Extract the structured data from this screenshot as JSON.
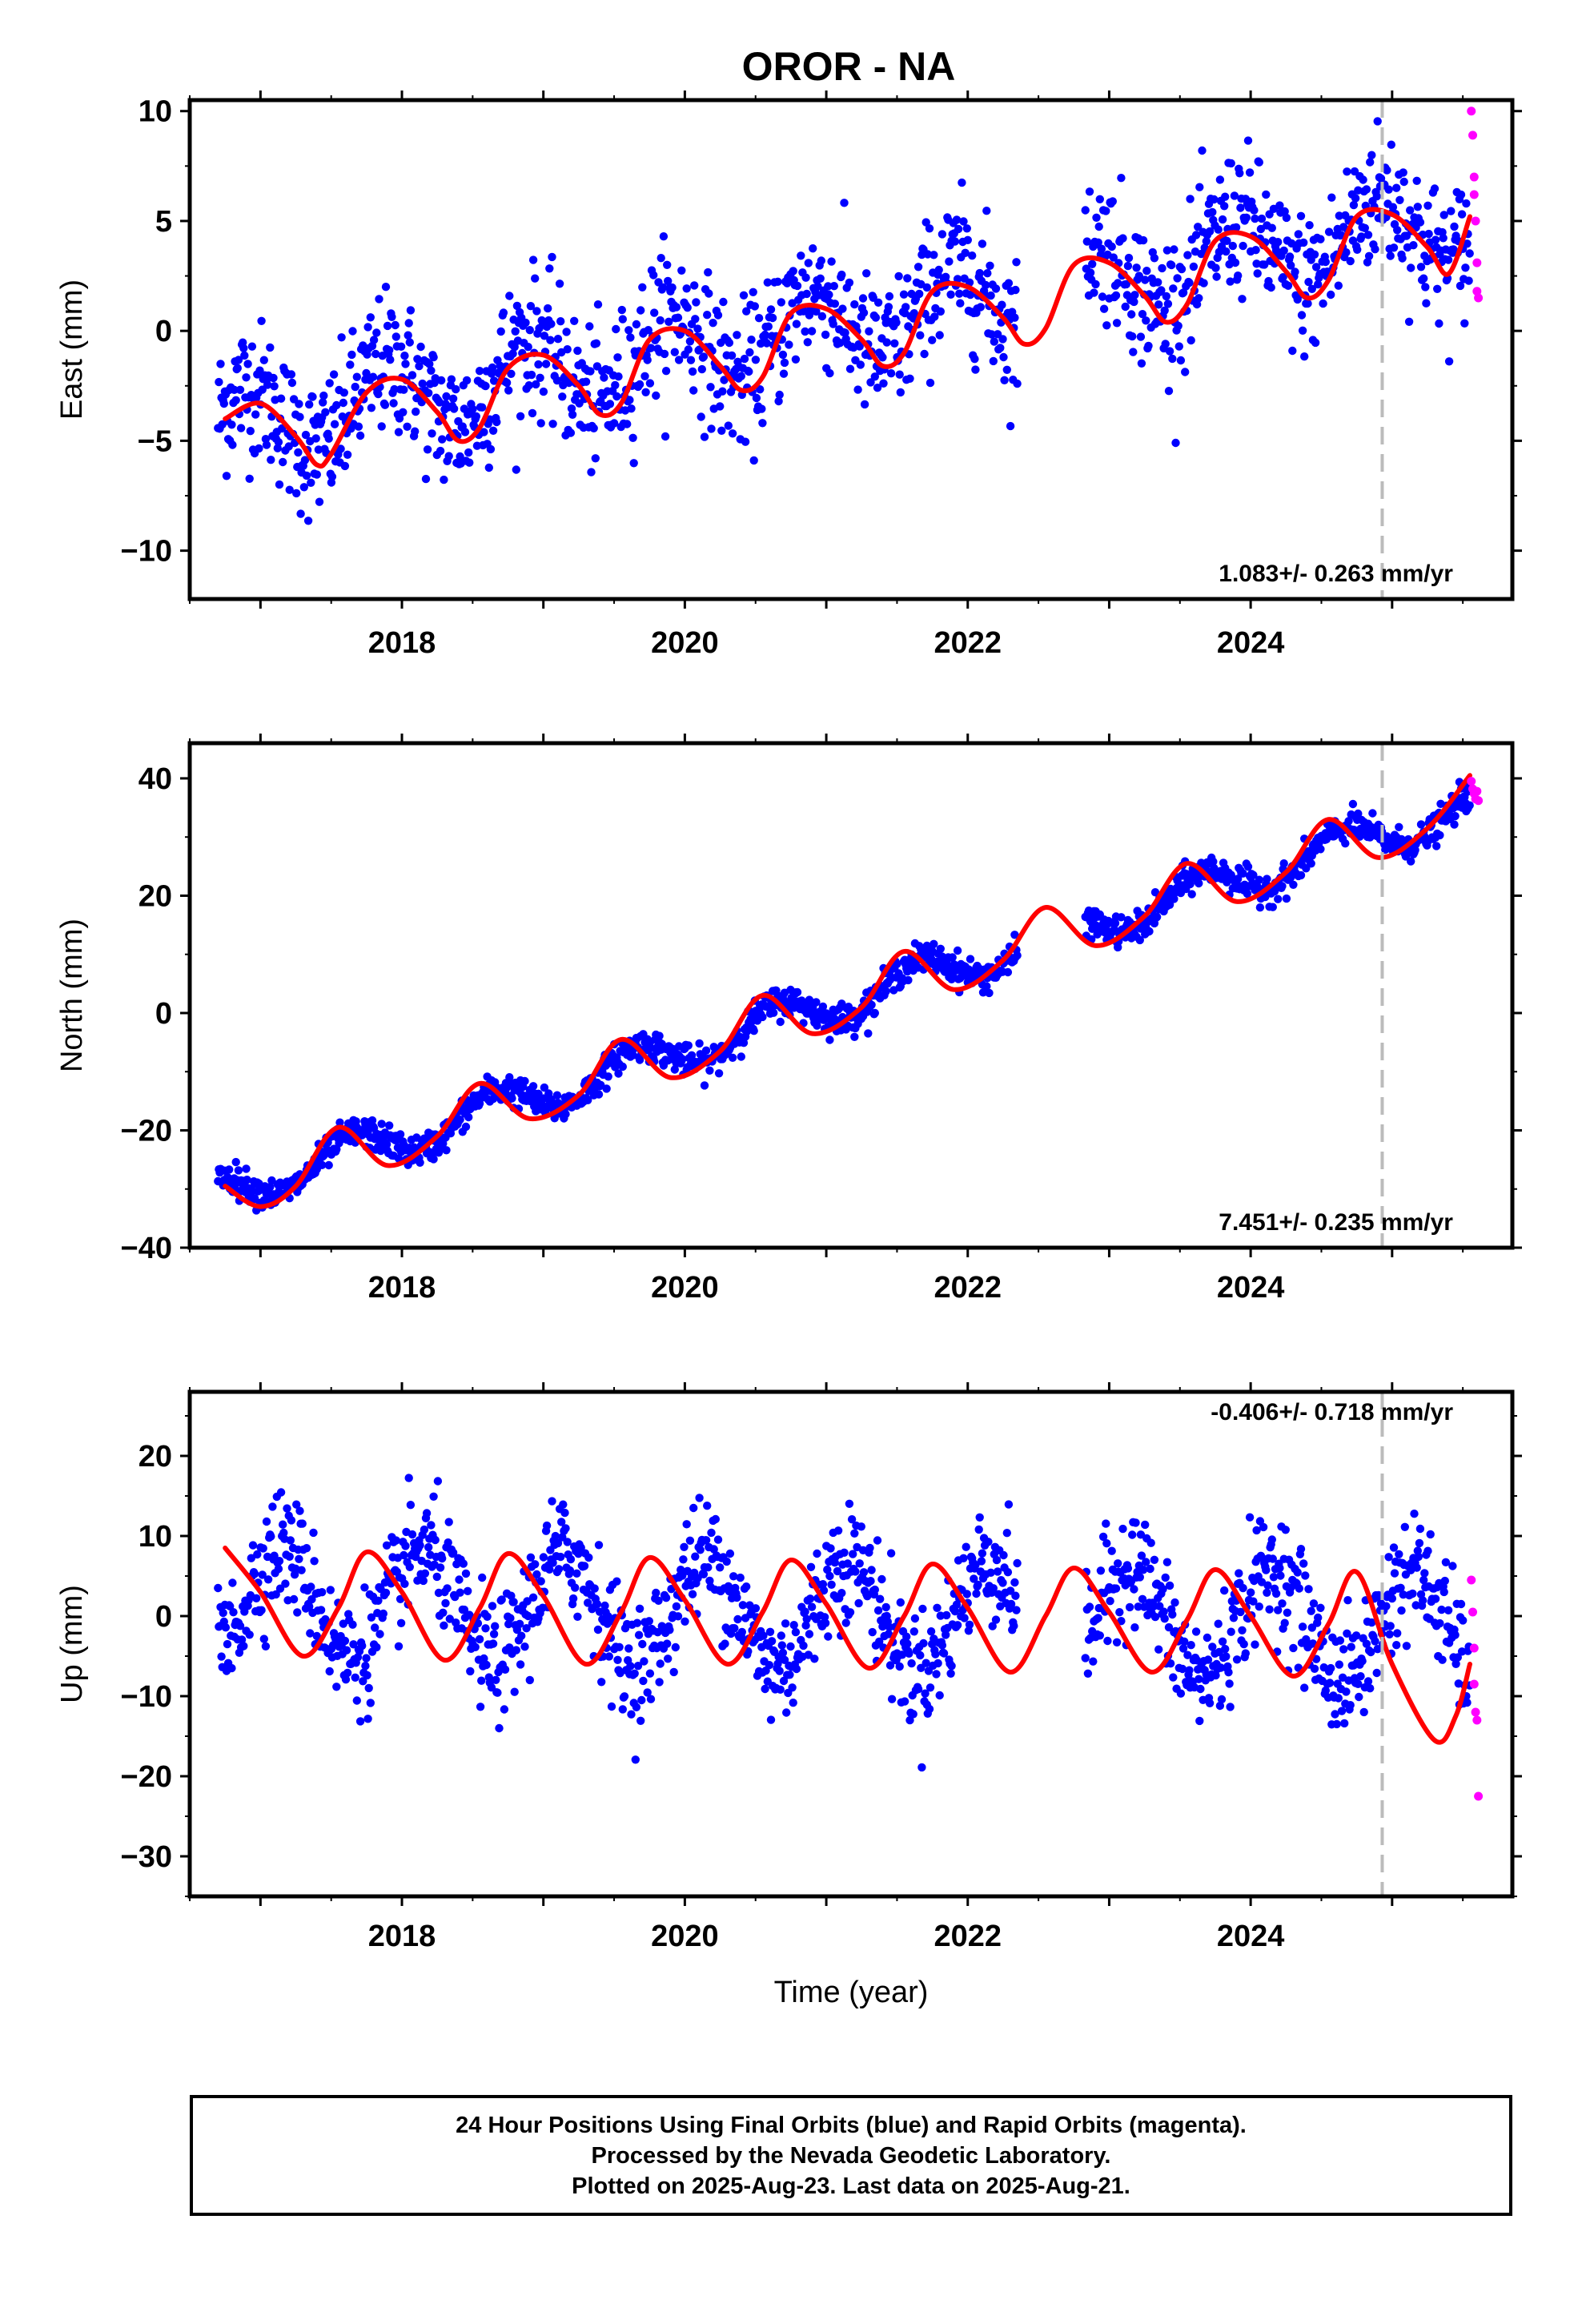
{
  "title": "OROR - NA",
  "footer": {
    "line1": "24 Hour Positions Using Final Orbits (blue) and Rapid Orbits (magenta).",
    "line2": "Processed by the Nevada Geodetic Laboratory.",
    "line3": "Plotted on 2025-Aug-23. Last data on 2025-Aug-21."
  },
  "colors": {
    "final": "#0000ff",
    "rapid": "#ff00ff",
    "fit": "#ff0000",
    "marker": "#bbbbbb"
  },
  "chart_data": [
    {
      "type": "scatter",
      "component": "east",
      "ylabel": "East (mm)",
      "xlabel": "",
      "rate_label": "1.083+/- 0.263 mm/yr",
      "xlim": [
        2016.5,
        2025.85
      ],
      "ylim": [
        -12.2,
        10.5
      ],
      "yticks": [
        -10,
        -5,
        0,
        5,
        10
      ],
      "xticks": [
        2018,
        2020,
        2022,
        2024
      ],
      "xtick_labels": [
        "2018",
        "2020",
        "2022",
        "2024"
      ],
      "event_line_x": 2024.93,
      "series": [
        {
          "name": "Final Orbits (blue)",
          "role": "final",
          "gaps": [
            [
              2022.35,
              2022.83
            ]
          ],
          "x_range": [
            2016.7,
            2025.55
          ],
          "trend": {
            "y0": -4.4,
            "x0": 2016.75,
            "rate": 1.083
          },
          "seasonal": {
            "amp": 1.7,
            "phase": 0.35
          },
          "scatter_sigma": 1.6
        },
        {
          "name": "Rapid Orbits (magenta)",
          "role": "rapid",
          "x": [
            2025.56,
            2025.57,
            2025.58,
            2025.58,
            2025.59,
            2025.6,
            2025.6,
            2025.61
          ],
          "y": [
            10.0,
            8.9,
            7.0,
            6.2,
            5.0,
            3.1,
            1.8,
            1.5
          ]
        },
        {
          "name": "Model fit",
          "role": "fit",
          "x": [
            2016.75,
            2017.0,
            2017.25,
            2017.4,
            2017.5,
            2017.75,
            2018.0,
            2018.25,
            2018.4,
            2018.55,
            2018.75,
            2019.0,
            2019.25,
            2019.4,
            2019.55,
            2019.75,
            2020.0,
            2020.25,
            2020.4,
            2020.55,
            2020.75,
            2021.0,
            2021.25,
            2021.4,
            2021.55,
            2021.75,
            2022.0,
            2022.25,
            2022.4,
            2022.55,
            2022.75,
            2023.0,
            2023.25,
            2023.4,
            2023.55,
            2023.75,
            2024.0,
            2024.25,
            2024.4,
            2024.55,
            2024.75,
            2025.0,
            2025.25,
            2025.4,
            2025.55
          ],
          "y": [
            -4.0,
            -3.3,
            -4.8,
            -6.1,
            -5.6,
            -2.8,
            -2.2,
            -3.7,
            -5.0,
            -4.4,
            -1.7,
            -1.1,
            -2.5,
            -3.8,
            -3.3,
            -0.4,
            0.0,
            -1.6,
            -2.7,
            -2.1,
            0.8,
            1.0,
            -0.4,
            -1.6,
            -1.0,
            1.8,
            2.0,
            0.6,
            -0.6,
            0.1,
            3.0,
            3.1,
            1.6,
            0.4,
            1.2,
            4.1,
            4.3,
            2.7,
            1.5,
            2.3,
            5.2,
            5.3,
            3.8,
            2.6,
            5.2
          ]
        }
      ]
    },
    {
      "type": "scatter",
      "component": "north",
      "ylabel": "North (mm)",
      "xlabel": "",
      "rate_label": "7.451+/- 0.235 mm/yr",
      "xlim": [
        2016.5,
        2025.85
      ],
      "ylim": [
        -40,
        46
      ],
      "yticks": [
        -40,
        -20,
        0,
        20,
        40
      ],
      "xticks": [
        2018,
        2020,
        2022,
        2024
      ],
      "xtick_labels": [
        "2018",
        "2020",
        "2022",
        "2024"
      ],
      "event_line_x": 2024.93,
      "series": [
        {
          "name": "Final Orbits (blue)",
          "role": "final",
          "gaps": [
            [
              2022.35,
              2022.83
            ]
          ],
          "x_range": [
            2016.7,
            2025.55
          ],
          "trend": {
            "y0": -30.5,
            "x0": 2016.75,
            "rate": 7.45
          },
          "seasonal": {
            "amp": 3.2,
            "phase": 0.6
          },
          "scatter_sigma": 1.3
        },
        {
          "name": "Rapid Orbits (magenta)",
          "role": "rapid",
          "x": [
            2025.56,
            2025.57,
            2025.58,
            2025.59,
            2025.6,
            2025.61
          ],
          "y": [
            39.5,
            38.2,
            37.4,
            36.5,
            37.8,
            36.2
          ]
        },
        {
          "name": "Model fit",
          "role": "fit",
          "x": [
            2016.75,
            2017.0,
            2017.25,
            2017.55,
            2017.9,
            2018.25,
            2018.55,
            2018.9,
            2019.25,
            2019.55,
            2019.9,
            2020.25,
            2020.55,
            2020.9,
            2021.25,
            2021.55,
            2021.9,
            2022.25,
            2022.55,
            2022.9,
            2023.25,
            2023.55,
            2023.9,
            2024.25,
            2024.55,
            2024.9,
            2025.25,
            2025.55
          ],
          "y": [
            -29.5,
            -33.0,
            -29.5,
            -19.5,
            -26.0,
            -21.0,
            -12.0,
            -18.0,
            -14.0,
            -4.5,
            -11.0,
            -6.5,
            3.0,
            -3.5,
            1.0,
            10.5,
            4.0,
            9.0,
            18.0,
            11.5,
            16.5,
            25.5,
            19.0,
            24.0,
            33.0,
            26.5,
            31.5,
            40.5
          ]
        }
      ]
    },
    {
      "type": "scatter",
      "component": "up",
      "ylabel": "Up (mm)",
      "xlabel": "Time (year)",
      "rate_label": "-0.406+/- 0.718 mm/yr",
      "xlim": [
        2016.5,
        2025.85
      ],
      "ylim": [
        -35,
        28
      ],
      "yticks": [
        -30,
        -20,
        -10,
        0,
        10,
        20
      ],
      "xticks": [
        2018,
        2020,
        2022,
        2024
      ],
      "xtick_labels": [
        "2018",
        "2020",
        "2022",
        "2024"
      ],
      "event_line_x": 2024.93,
      "series": [
        {
          "name": "Final Orbits (blue)",
          "role": "final",
          "gaps": [
            [
              2022.35,
              2022.83
            ]
          ],
          "x_range": [
            2016.7,
            2025.55
          ],
          "trend": {
            "y0": 2.0,
            "x0": 2016.75,
            "rate": -0.406
          },
          "seasonal": {
            "amp": 6.8,
            "phase": 0.1
          },
          "scatter_sigma": 3.6
        },
        {
          "name": "Rapid Orbits (magenta)",
          "role": "rapid",
          "x": [
            2025.56,
            2025.57,
            2025.58,
            2025.58,
            2025.59,
            2025.6,
            2025.61
          ],
          "y": [
            4.5,
            0.5,
            -4.0,
            -8.5,
            -12.0,
            -13.0,
            -22.5
          ]
        },
        {
          "name": "Model fit",
          "role": "fit",
          "x": [
            2016.75,
            2017.0,
            2017.3,
            2017.55,
            2017.75,
            2018.0,
            2018.3,
            2018.55,
            2018.75,
            2019.0,
            2019.3,
            2019.55,
            2019.75,
            2020.0,
            2020.3,
            2020.55,
            2020.75,
            2021.0,
            2021.3,
            2021.55,
            2021.75,
            2022.0,
            2022.3,
            2022.55,
            2022.75,
            2023.0,
            2023.3,
            2023.55,
            2023.75,
            2024.0,
            2024.3,
            2024.55,
            2024.75,
            2025.0,
            2025.3,
            2025.45,
            2025.55
          ],
          "y": [
            8.5,
            3.0,
            -5.0,
            1.0,
            8.0,
            3.0,
            -5.5,
            1.0,
            7.8,
            2.5,
            -6.0,
            0.5,
            7.3,
            2.0,
            -6.0,
            0.5,
            7.0,
            1.5,
            -6.5,
            0.0,
            6.5,
            1.0,
            -7.0,
            0.0,
            6.0,
            0.5,
            -7.0,
            -0.5,
            5.8,
            0.0,
            -7.5,
            -1.0,
            5.5,
            -6.0,
            -15.5,
            -12.5,
            -6.0
          ]
        }
      ]
    }
  ]
}
